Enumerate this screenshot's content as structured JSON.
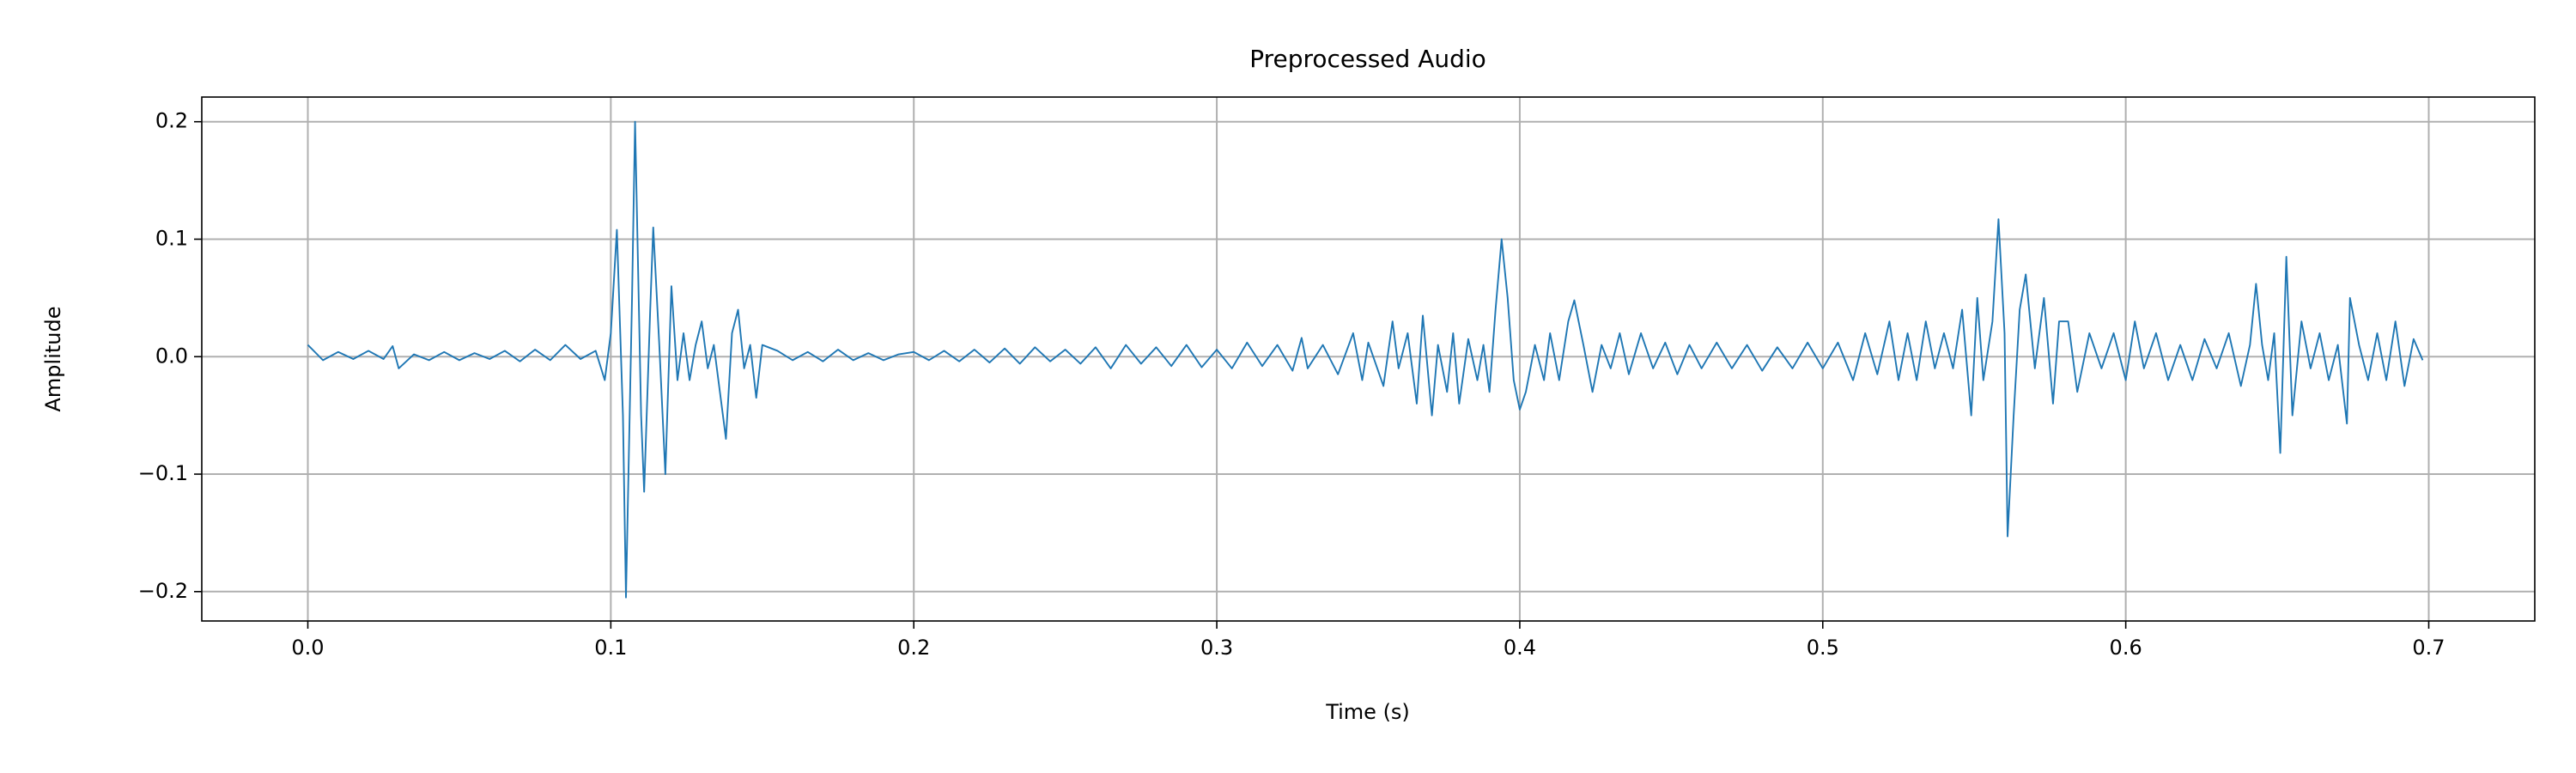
{
  "chart_data": {
    "type": "line",
    "title": "Preprocessed Audio",
    "x_label": "Time (s)",
    "y_label": "Amplitude",
    "color": "#1f77b4",
    "grid": true,
    "xlim": [
      -0.035,
      0.735
    ],
    "ylim": [
      -0.225,
      0.221
    ],
    "xticks": [
      {
        "value": 0,
        "label": "0.0"
      },
      0.1,
      0.2,
      0.3,
      0.4,
      0.5,
      0.6,
      0.7
    ],
    "yticks": [
      {
        "value": -0.2,
        "label": "−0.2"
      },
      {
        "value": -0.1,
        "label": "−0.1"
      },
      {
        "value": 0,
        "label": "0.0"
      },
      0.1,
      0.2
    ],
    "x": [
      0,
      0.005,
      0.01,
      0.015,
      0.02,
      0.025,
      0.028,
      0.03,
      0.035,
      0.04,
      0.045,
      0.05,
      0.055,
      0.06,
      0.065,
      0.07,
      0.075,
      0.08,
      0.085,
      0.09,
      0.095,
      0.098,
      0.1,
      0.102,
      0.104,
      0.105,
      0.107,
      0.108,
      0.11,
      0.111,
      0.113,
      0.114,
      0.116,
      0.118,
      0.12,
      0.122,
      0.124,
      0.126,
      0.128,
      0.13,
      0.132,
      0.134,
      0.136,
      0.138,
      0.14,
      0.142,
      0.144,
      0.146,
      0.148,
      0.15,
      0.155,
      0.16,
      0.165,
      0.17,
      0.175,
      0.18,
      0.185,
      0.19,
      0.195,
      0.2,
      0.205,
      0.21,
      0.215,
      0.22,
      0.225,
      0.23,
      0.235,
      0.24,
      0.245,
      0.25,
      0.255,
      0.26,
      0.265,
      0.27,
      0.275,
      0.28,
      0.285,
      0.29,
      0.295,
      0.3,
      0.305,
      0.31,
      0.315,
      0.32,
      0.325,
      0.328,
      0.33,
      0.335,
      0.34,
      0.345,
      0.348,
      0.35,
      0.355,
      0.358,
      0.36,
      0.363,
      0.366,
      0.368,
      0.371,
      0.373,
      0.376,
      0.378,
      0.38,
      0.383,
      0.386,
      0.388,
      0.39,
      0.392,
      0.394,
      0.396,
      0.398,
      0.4,
      0.402,
      0.405,
      0.408,
      0.41,
      0.413,
      0.416,
      0.418,
      0.421,
      0.424,
      0.427,
      0.43,
      0.433,
      0.436,
      0.44,
      0.444,
      0.448,
      0.452,
      0.456,
      0.46,
      0.465,
      0.47,
      0.475,
      0.48,
      0.485,
      0.49,
      0.495,
      0.5,
      0.505,
      0.51,
      0.514,
      0.518,
      0.522,
      0.525,
      0.528,
      0.531,
      0.534,
      0.537,
      0.54,
      0.543,
      0.546,
      0.549,
      0.551,
      0.553,
      0.556,
      0.558,
      0.56,
      0.561,
      0.563,
      0.565,
      0.567,
      0.57,
      0.573,
      0.576,
      0.578,
      0.581,
      0.584,
      0.588,
      0.592,
      0.596,
      0.6,
      0.603,
      0.606,
      0.61,
      0.614,
      0.618,
      0.622,
      0.626,
      0.63,
      0.634,
      0.638,
      0.641,
      0.643,
      0.645,
      0.647,
      0.649,
      0.651,
      0.653,
      0.655,
      0.658,
      0.661,
      0.664,
      0.667,
      0.67,
      0.673,
      0.674,
      0.677,
      0.68,
      0.683,
      0.686,
      0.689,
      0.692,
      0.695,
      0.698
    ],
    "values": [
      0.01,
      -0.003,
      0.004,
      -0.002,
      0.005,
      -0.002,
      0.009,
      -0.01,
      0.002,
      -0.003,
      0.004,
      -0.003,
      0.003,
      -0.002,
      0.005,
      -0.004,
      0.006,
      -0.003,
      0.01,
      -0.002,
      0.005,
      -0.02,
      0.02,
      0.108,
      -0.05,
      -0.205,
      0.05,
      0.2,
      -0.05,
      -0.115,
      0.04,
      0.11,
      0.01,
      -0.1,
      0.06,
      -0.02,
      0.02,
      -0.02,
      0.01,
      0.03,
      -0.01,
      0.01,
      -0.03,
      -0.07,
      0.02,
      0.04,
      -0.01,
      0.01,
      -0.035,
      0.01,
      0.005,
      -0.003,
      0.004,
      -0.004,
      0.006,
      -0.003,
      0.003,
      -0.003,
      0.002,
      0.004,
      -0.003,
      0.005,
      -0.004,
      0.006,
      -0.005,
      0.007,
      -0.006,
      0.008,
      -0.004,
      0.006,
      -0.006,
      0.008,
      -0.01,
      0.01,
      -0.006,
      0.008,
      -0.008,
      0.01,
      -0.009,
      0.006,
      -0.01,
      0.012,
      -0.008,
      0.01,
      -0.012,
      0.016,
      -0.01,
      0.01,
      -0.015,
      0.02,
      -0.02,
      0.012,
      -0.025,
      0.03,
      -0.01,
      0.02,
      -0.04,
      0.035,
      -0.05,
      0.01,
      -0.03,
      0.02,
      -0.04,
      0.015,
      -0.02,
      0.01,
      -0.03,
      0.04,
      0.1,
      0.05,
      -0.02,
      -0.045,
      -0.03,
      0.01,
      -0.02,
      0.02,
      -0.02,
      0.03,
      0.048,
      0.01,
      -0.03,
      0.01,
      -0.01,
      0.02,
      -0.015,
      0.02,
      -0.01,
      0.012,
      -0.015,
      0.01,
      -0.01,
      0.012,
      -0.01,
      0.01,
      -0.012,
      0.008,
      -0.01,
      0.012,
      -0.01,
      0.012,
      -0.02,
      0.02,
      -0.015,
      0.03,
      -0.02,
      0.02,
      -0.02,
      0.03,
      -0.01,
      0.02,
      -0.01,
      0.04,
      -0.05,
      0.05,
      -0.02,
      0.03,
      0.117,
      0.02,
      -0.153,
      -0.05,
      0.04,
      0.07,
      -0.01,
      0.05,
      -0.04,
      0.03,
      0.03,
      -0.03,
      0.02,
      -0.01,
      0.02,
      -0.02,
      0.03,
      -0.01,
      0.02,
      -0.02,
      0.01,
      -0.02,
      0.015,
      -0.01,
      0.02,
      -0.025,
      0.01,
      0.062,
      0.01,
      -0.02,
      0.02,
      -0.082,
      0.085,
      -0.05,
      0.03,
      -0.01,
      0.02,
      -0.02,
      0.01,
      -0.057,
      0.05,
      0.01,
      -0.02,
      0.02,
      -0.02,
      0.03,
      -0.025,
      0.015,
      -0.003
    ]
  }
}
